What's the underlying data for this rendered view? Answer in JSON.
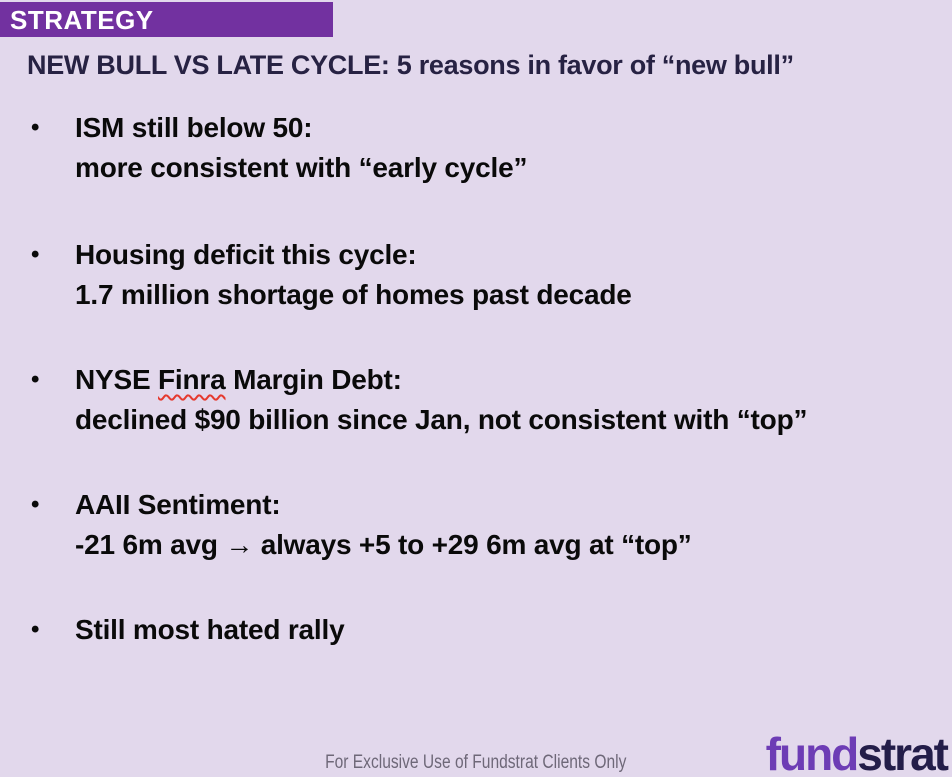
{
  "colors": {
    "background": "#e2d8ec",
    "banner": "#7231a0",
    "banner_text": "#ffffff",
    "title": "#272243",
    "body": "#0a0a0a",
    "footer": "#6e6878",
    "logo_fund": "#6d3cb5",
    "logo_strat": "#231d49",
    "squiggle": "#e5392e"
  },
  "banner": {
    "label": "STRATEGY"
  },
  "title": "NEW BULL VS LATE CYCLE: 5 reasons in favor of “new bull”",
  "bullet_glyph": "•",
  "bullets": [
    {
      "heading": "ISM still below 50:",
      "detail": "more consistent with “early cycle”"
    },
    {
      "heading": "Housing deficit this cycle:",
      "detail": "1.7 million shortage of homes past decade"
    },
    {
      "heading_pre": "NYSE ",
      "heading_misspelled": "Finra",
      "heading_post": " Margin Debt:",
      "detail": "declined $90 billion since Jan, not consistent with “top”"
    },
    {
      "heading": "AAII Sentiment:",
      "detail": "-21 6m avg → always +5 to +29 6m avg at “top”"
    },
    {
      "heading": "Still most hated rally"
    }
  ],
  "footer": {
    "disclaimer": "For Exclusive Use of Fundstrat Clients Only"
  },
  "logo": {
    "part1": "fund",
    "part2": "strat"
  }
}
